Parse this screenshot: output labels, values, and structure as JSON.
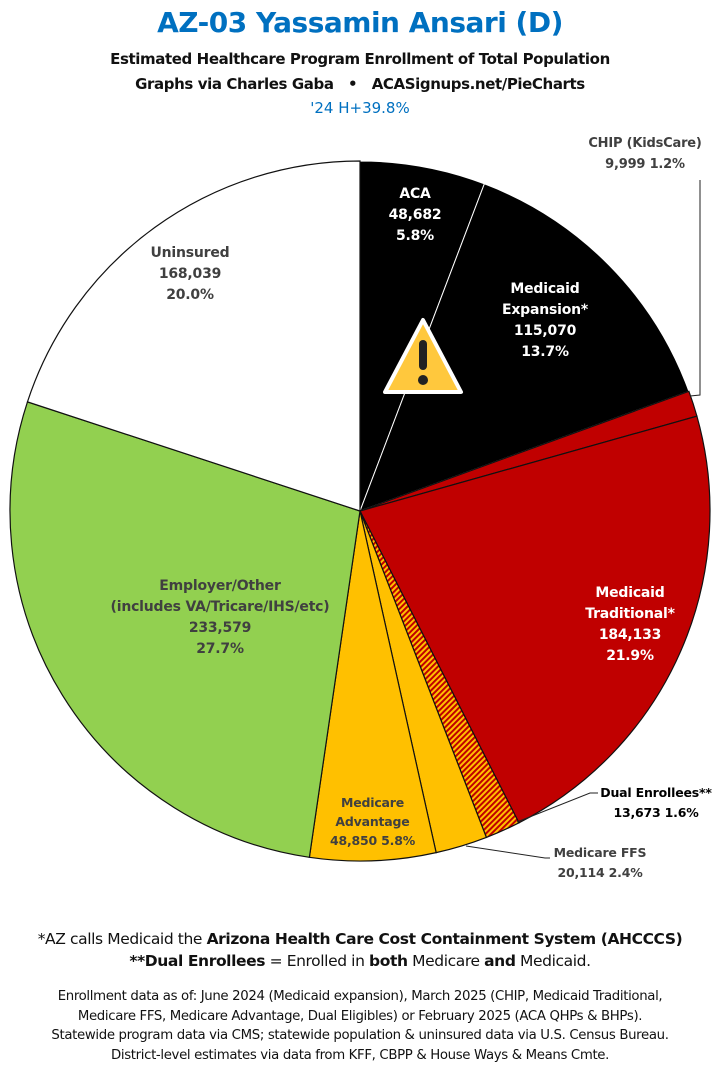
{
  "header": {
    "title": "AZ-03 Yassamin Ansari (D)",
    "subtitle": "Estimated Healthcare Program Enrollment of Total Population",
    "credit": "Graphs via Charles Gaba   •   ACASignups.net/PieCharts",
    "tag": "'24 H+39.8%"
  },
  "chart_data": {
    "type": "pie",
    "title": "AZ-03 Yassamin Ansari (D)",
    "start": "top",
    "direction": "clockwise",
    "slices": [
      {
        "label": "ACA",
        "value": 48682,
        "pct": "5.8%",
        "color": "#000000"
      },
      {
        "label": "Medicaid Expansion*",
        "value": 115070,
        "pct": "13.7%",
        "color": "#000000"
      },
      {
        "label": "CHIP (KidsCare)",
        "value": 9999,
        "pct": "1.2%",
        "color": "#c00000"
      },
      {
        "label": "Medicaid Traditional*",
        "value": 184133,
        "pct": "21.9%",
        "color": "#c00000"
      },
      {
        "label": "Dual Enrollees**",
        "value": 13673,
        "pct": "1.6%",
        "color": "hatch-red-yellow"
      },
      {
        "label": "Medicare FFS",
        "value": 20114,
        "pct": "2.4%",
        "color": "#ffc000"
      },
      {
        "label": "Medicare Advantage",
        "value": 48850,
        "pct": "5.8%",
        "color": "#ffc000"
      },
      {
        "label": "Employer/Other (includes VA/Tricare/IHS/etc)",
        "value": 233579,
        "pct": "27.7%",
        "color": "#92d050"
      },
      {
        "label": "Uninsured",
        "value": 168039,
        "pct": "20.0%",
        "color": "#ffffff"
      }
    ],
    "labels": {
      "aca": [
        "ACA",
        "48,682",
        "5.8%"
      ],
      "mexp": [
        "Medicaid",
        "Expansion*",
        "115,070",
        "13.7%"
      ],
      "chip": [
        "CHIP (KidsCare)",
        "9,999 1.2%"
      ],
      "mtrad": [
        "Medicaid",
        "Traditional*",
        "184,133",
        "21.9%"
      ],
      "dual": [
        "Dual Enrollees**",
        "13,673 1.6%"
      ],
      "ffs": [
        "Medicare FFS",
        "20,114 2.4%"
      ],
      "ma": [
        "Medicare",
        "Advantage",
        "48,850 5.8%"
      ],
      "emp": [
        "Employer/Other",
        "(includes VA/Tricare/IHS/etc)",
        "233,579",
        "27.7%"
      ],
      "unins": [
        "Uninsured",
        "168,039",
        "20.0%"
      ]
    },
    "icon": "warning-triangle-icon"
  },
  "notes": {
    "n1_pre": "*AZ calls Medicaid the ",
    "n1_bold": "Arizona Health Care Cost Containment System (AHCCCS)",
    "n2_bold1": "**Dual Enrollees",
    "n2_mid": " = Enrolled in ",
    "n2_bold2": "both",
    "n2_mid2": " Medicare ",
    "n2_bold3": "and",
    "n2_end": " Medicaid.",
    "sources": [
      "Enrollment data as of: June 2024 (Medicaid expansion), March 2025 (CHIP, Medicaid Traditional,",
      "Medicare FFS, Medicare Advantage, Dual Eligibles) or February 2025 (ACA QHPs & BHPs).",
      "Statewide program data via CMS; statewide population & uninsured data via U.S. Census Bureau.",
      "District-level estimates via data from KFF, CBPP & House Ways & Means Cmte."
    ]
  }
}
